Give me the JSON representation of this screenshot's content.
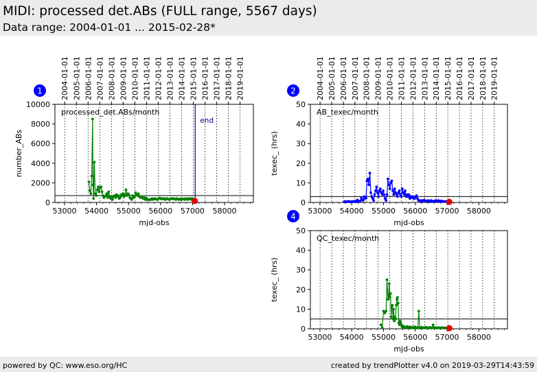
{
  "header": {
    "title": "MIDI: processed det.ABs (FULL range, 5567 days)",
    "subtitle": "Data range: 2004-01-01 ... 2015-02-28*"
  },
  "footer": {
    "left": "powered by QC: www.eso.org/HC",
    "right": "created by trendPlotter v4.0 on 2019-03-29T14:43:59"
  },
  "colors": {
    "header_bg": "#ebebeb",
    "series_green": "#008000",
    "series_blue": "#0000ff",
    "marker_red": "#e00000",
    "end_line": "#00008b",
    "badge": "#0000ff"
  },
  "chart_data": [
    {
      "id": "1",
      "type": "line",
      "panel_label": "processed_det.ABs/month",
      "ylabel": "number_ABs",
      "xlabel": "mjd-obs",
      "xlim": [
        52700,
        58900
      ],
      "ylim": [
        0,
        10000
      ],
      "xticks": [
        53000,
        54000,
        55000,
        56000,
        57000,
        58000
      ],
      "yticks": [
        0,
        2000,
        4000,
        6000,
        8000,
        10000
      ],
      "year_labels": [
        "2004-01-01",
        "2005-01-01",
        "2006-01-01",
        "2007-01-01",
        "2008-01-01",
        "2009-01-01",
        "2010-01-01",
        "2011-01-01",
        "2012-01-01",
        "2013-01-01",
        "2014-01-01",
        "2015-01-01",
        "2016-01-01",
        "2017-01-01",
        "2018-01-01",
        "2019-01-01"
      ],
      "year_mjd": [
        53005,
        53371,
        53736,
        54101,
        54466,
        54832,
        55197,
        55562,
        55927,
        56293,
        56658,
        57023,
        57388,
        57754,
        58119,
        58484
      ],
      "ref_line": 700,
      "end_mjd": 57081,
      "end_label": "end",
      "color": "#008000",
      "series": [
        {
          "x": [
            53760,
            53790,
            53820,
            53850,
            53875,
            53890,
            53905,
            53930,
            53960,
            53990,
            54020,
            54050,
            54080,
            54110,
            54140,
            54170,
            54200,
            54230,
            54260,
            54290,
            54320,
            54350,
            54380,
            54410,
            54440,
            54470,
            54500,
            54530,
            54560,
            54590,
            54620,
            54650,
            54680,
            54710,
            54740,
            54770,
            54800,
            54830,
            54860,
            54890,
            54920,
            54950,
            54980,
            55010,
            55040,
            55070,
            55100,
            55130,
            55160,
            55190,
            55220,
            55250,
            55280,
            55310,
            55340,
            55370,
            55400,
            55430,
            55460,
            55490,
            55520,
            55550,
            55580,
            55610,
            55640,
            55670,
            55700,
            55730,
            55760,
            55790,
            55820,
            55850,
            55880,
            55910,
            55940,
            55970,
            56000,
            56030,
            56060,
            56090,
            56120,
            56150,
            56180,
            56210,
            56240,
            56270,
            56300,
            56330,
            56360,
            56390,
            56420,
            56450,
            56480,
            56510,
            56540,
            56570,
            56600,
            56630,
            56660,
            56690,
            56720,
            56750,
            56780,
            56810,
            56840,
            56870,
            56900,
            56930,
            56960,
            56990,
            57020,
            57050,
            57080
          ],
          "y": [
            2100,
            1200,
            900,
            2700,
            8500,
            1800,
            400,
            4100,
            900,
            700,
            1300,
            1600,
            1100,
            1500,
            1600,
            1100,
            700,
            500,
            600,
            700,
            900,
            500,
            1100,
            600,
            400,
            500,
            300,
            600,
            700,
            500,
            800,
            600,
            700,
            400,
            500,
            800,
            700,
            900,
            600,
            800,
            1300,
            700,
            900,
            800,
            500,
            400,
            300,
            700,
            500,
            600,
            1000,
            800,
            700,
            900,
            600,
            500,
            600,
            500,
            400,
            500,
            300,
            450,
            350,
            300,
            250,
            300,
            300,
            400,
            300,
            350,
            400,
            350,
            300,
            350,
            400,
            450,
            400,
            350,
            400,
            350,
            400,
            300,
            350,
            400,
            350,
            300,
            350,
            400,
            400,
            350,
            400,
            350,
            300,
            400,
            350,
            300,
            350,
            300,
            400,
            350,
            350,
            300,
            400,
            350,
            300,
            400,
            350,
            400,
            300,
            400,
            350,
            200,
            200
          ],
          "last": [
            57070,
            150
          ]
        }
      ]
    },
    {
      "id": "2",
      "type": "line",
      "panel_label": "AB_texec/month",
      "ylabel": "texec_ (hrs)",
      "xlabel": "mjd-obs",
      "xlim": [
        52700,
        58900
      ],
      "ylim": [
        0,
        50
      ],
      "xticks": [
        53000,
        54000,
        55000,
        56000,
        57000,
        58000
      ],
      "yticks": [
        0,
        10,
        20,
        30,
        40,
        50
      ],
      "year_labels": [
        "2004-01-01",
        "2005-01-01",
        "2006-01-01",
        "2007-01-01",
        "2008-01-01",
        "2009-01-01",
        "2010-01-01",
        "2011-01-01",
        "2012-01-01",
        "2013-01-01",
        "2014-01-01",
        "2015-01-01",
        "2016-01-01",
        "2017-01-01",
        "2018-01-01",
        "2019-01-01"
      ],
      "year_mjd": [
        53005,
        53371,
        53736,
        54101,
        54466,
        54832,
        55197,
        55562,
        55927,
        56293,
        56658,
        57023,
        57388,
        57754,
        58119,
        58484
      ],
      "ref_line": 3,
      "color": "#0000ff",
      "series": [
        {
          "x": [
            53760,
            53790,
            53820,
            53850,
            53880,
            53910,
            53940,
            53970,
            54000,
            54030,
            54060,
            54090,
            54120,
            54150,
            54180,
            54210,
            54240,
            54270,
            54300,
            54330,
            54360,
            54390,
            54420,
            54450,
            54480,
            54510,
            54540,
            54570,
            54600,
            54630,
            54660,
            54690,
            54720,
            54750,
            54780,
            54810,
            54840,
            54870,
            54900,
            54930,
            54960,
            54990,
            55020,
            55050,
            55080,
            55110,
            55140,
            55170,
            55200,
            55230,
            55260,
            55290,
            55320,
            55350,
            55380,
            55410,
            55440,
            55470,
            55500,
            55530,
            55560,
            55590,
            55620,
            55650,
            55680,
            55710,
            55740,
            55770,
            55800,
            55830,
            55860,
            55890,
            55920,
            55950,
            55980,
            56010,
            56040,
            56070,
            56100,
            56130,
            56160,
            56190,
            56220,
            56250,
            56280,
            56310,
            56340,
            56370,
            56400,
            56430,
            56460,
            56490,
            56520,
            56550,
            56580,
            56610,
            56640,
            56670,
            56700,
            56730,
            56760,
            56790,
            56820,
            56850,
            56880,
            56910,
            56940,
            56970,
            57000,
            57030,
            57060
          ],
          "y": [
            0.3,
            0.5,
            0.3,
            0.4,
            0.5,
            0.6,
            0.3,
            0.4,
            0.3,
            0.5,
            0.4,
            0.6,
            0.3,
            0.8,
            1.2,
            0.5,
            0.4,
            0.8,
            2.5,
            1.5,
            1.0,
            3.0,
            2.0,
            2.2,
            11,
            12,
            9,
            15,
            5,
            3,
            2,
            1,
            4,
            6,
            8,
            5,
            3,
            6,
            7,
            5,
            4,
            6,
            4,
            2,
            1,
            4,
            12,
            9,
            7,
            10,
            11,
            6,
            4,
            7,
            5,
            4,
            3,
            5,
            6,
            4,
            3,
            7,
            5,
            4,
            6,
            3,
            4,
            3,
            4,
            2,
            3,
            2.5,
            3,
            2,
            2,
            3,
            3.5,
            2,
            1,
            1,
            0.5,
            1,
            0.7,
            1,
            1.2,
            0.8,
            0.5,
            0.8,
            1,
            0.6,
            0.4,
            1,
            0.8,
            0.6,
            0.5,
            0.7,
            1,
            0.8,
            0.6,
            1,
            0.7,
            0.5,
            0.8,
            0.6,
            0.4,
            0.5,
            0.6,
            0.4,
            0.5,
            0.3,
            0.4
          ],
          "last": [
            57070,
            0.3
          ]
        }
      ]
    },
    {
      "id": "4",
      "type": "line",
      "panel_label": "QC_texec/month",
      "ylabel": "texec_ (hrs)",
      "xlabel": "mjd-obs",
      "xlim": [
        52700,
        58900
      ],
      "ylim": [
        0,
        50
      ],
      "xticks": [
        53000,
        54000,
        55000,
        56000,
        57000,
        58000
      ],
      "yticks": [
        0,
        10,
        20,
        30,
        40,
        50
      ],
      "year_mjd": [
        53005,
        53371,
        53736,
        54101,
        54466,
        54832,
        55197,
        55562,
        55927,
        56293,
        56658,
        57023,
        57388,
        57754,
        58119,
        58484
      ],
      "ref_line": 5,
      "color": "#008000",
      "series": [
        {
          "x": [
            54920,
            54960,
            55000,
            55040,
            55080,
            55110,
            55140,
            55160,
            55180,
            55200,
            55220,
            55240,
            55260,
            55280,
            55300,
            55320,
            55340,
            55360,
            55380,
            55400,
            55420,
            55440,
            55460,
            55480,
            55500,
            55520,
            55540,
            55560,
            55580,
            55600,
            55630,
            55660,
            55690,
            55720,
            55750,
            55780,
            55810,
            55840,
            55870,
            55900,
            55930,
            55960,
            55990,
            56020,
            56050,
            56080,
            56110,
            56140,
            56170,
            56200,
            56230,
            56260,
            56290,
            56320,
            56350,
            56380,
            56410,
            56440,
            56470,
            56500,
            56530,
            56560,
            56590,
            56620,
            56650,
            56680,
            56710,
            56740,
            56770,
            56800,
            56830,
            56860,
            56890,
            56920,
            56950,
            56980,
            57010,
            57040,
            57070
          ],
          "y": [
            2,
            0.5,
            9,
            8,
            9,
            25,
            15,
            17,
            23,
            16,
            18,
            6,
            11,
            12,
            5,
            10,
            4,
            6,
            5,
            12,
            15,
            16,
            13,
            3,
            2,
            4,
            3,
            2,
            1,
            1.5,
            0.5,
            1,
            0.8,
            0.5,
            1.2,
            0.7,
            0.4,
            1,
            0.6,
            0.5,
            0.8,
            0.3,
            1,
            0.5,
            0.4,
            0.7,
            9,
            0.5,
            0.3,
            0.8,
            0.6,
            0.4,
            0.5,
            0.8,
            0.3,
            0.6,
            0.4,
            0.5,
            0.7,
            0.3,
            0.5,
            2,
            0.4,
            0.6,
            0.5,
            0.3,
            0.6,
            0.4,
            0.5,
            0.3,
            0.6,
            0.4,
            0.5,
            0.4,
            0.3,
            0.5,
            0.4,
            0.3,
            0.4
          ],
          "last": [
            57070,
            0.3
          ]
        }
      ]
    }
  ]
}
